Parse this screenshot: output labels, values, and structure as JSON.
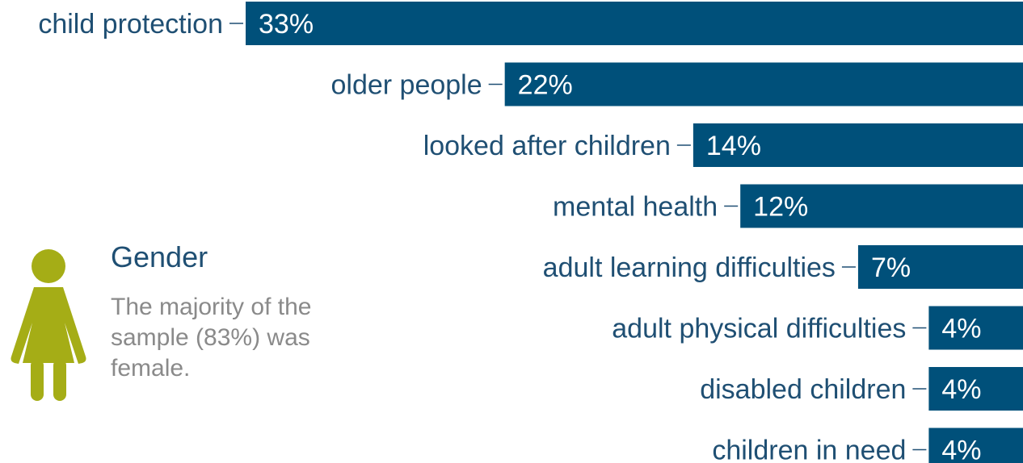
{
  "colors": {
    "bar": "#00507a",
    "label": "#1f4f73",
    "value_text": "#ffffff",
    "icon": "#a5ad16",
    "body_text": "#8a8a8a"
  },
  "gender": {
    "title": "Gender",
    "text": "The majority of the sample (83%) was female.",
    "icon": "female-person-icon"
  },
  "chart_data": {
    "type": "bar",
    "orientation": "horizontal",
    "categories": [
      "child protection",
      "older people",
      "looked after children",
      "mental health",
      "adult learning difficulties",
      "adult physical difficulties",
      "disabled children",
      "children in need"
    ],
    "values": [
      33,
      22,
      14,
      12,
      7,
      4,
      4,
      4
    ],
    "value_labels": [
      "33%",
      "22%",
      "14%",
      "12%",
      "7%",
      "4%",
      "4%",
      "4%"
    ],
    "title": "",
    "xlabel": "",
    "ylabel": "",
    "xlim": [
      0,
      33
    ],
    "grid": false
  }
}
